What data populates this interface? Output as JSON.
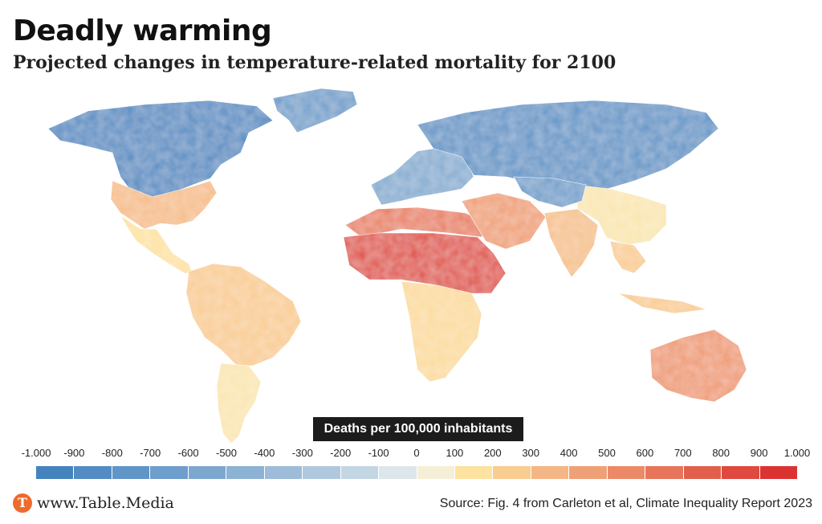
{
  "title": "Deadly warming",
  "subtitle": "Projected changes in temperature-related mortality for 2100",
  "legend": {
    "title": "Deaths per 100,000 inhabitants",
    "ticks": [
      "-1.000",
      "-900",
      "-800",
      "-700",
      "-600",
      "-500",
      "-400",
      "-300",
      "-200",
      "-100",
      "0",
      "100",
      "200",
      "300",
      "400",
      "500",
      "600",
      "700",
      "800",
      "900",
      "1.000"
    ],
    "range": [
      -1000,
      1000
    ],
    "colors": {
      "min": "#3f7fbd",
      "neutral": "#f3f5f2",
      "low_positive": "#fde2a0",
      "max": "#d8282a"
    }
  },
  "map": {
    "regions": [
      {
        "name": "North America (north)",
        "value": -850
      },
      {
        "name": "Greenland",
        "value": -650
      },
      {
        "name": "United States",
        "value": 320
      },
      {
        "name": "Mexico & Central America",
        "value": 150
      },
      {
        "name": "South America (north)",
        "value": 250
      },
      {
        "name": "South America (south)",
        "value": 120
      },
      {
        "name": "Northern Africa",
        "value": 600
      },
      {
        "name": "Sahel",
        "value": 820
      },
      {
        "name": "Southern Africa",
        "value": 180
      },
      {
        "name": "Europe",
        "value": -500
      },
      {
        "name": "Russia",
        "value": -750
      },
      {
        "name": "Middle East",
        "value": 450
      },
      {
        "name": "India",
        "value": 300
      },
      {
        "name": "China",
        "value": 120
      },
      {
        "name": "Central Asia",
        "value": -650
      },
      {
        "name": "Southeast Asia",
        "value": 250
      },
      {
        "name": "Australia",
        "value": 480
      }
    ]
  },
  "branding": {
    "logo_letter": "T",
    "text": "www.Table.Media",
    "logo_color": "#ef6a2c"
  },
  "source": "Source: Fig. 4 from Carleton et al, Climate Inequality Report 2023"
}
